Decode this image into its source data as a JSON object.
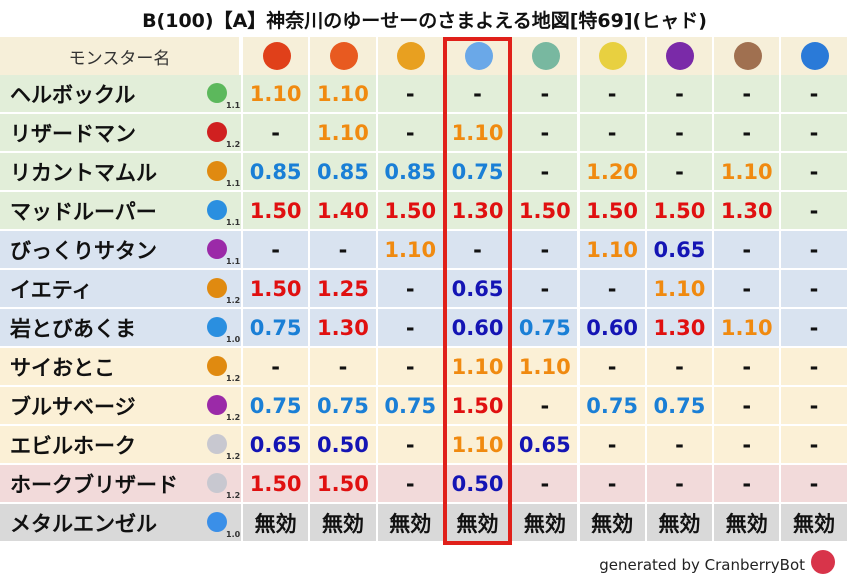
{
  "title": "B(100)【A】神奈川のゆーせーのさまよえる地図[特69](ヒャド)",
  "header": "モンスター名",
  "rows": [
    {
      "name": "ヘルボックル",
      "level": "1.1",
      "values": [
        "1.10",
        "1.10",
        "-",
        "-",
        "-",
        "-",
        "-",
        "-",
        "-"
      ]
    },
    {
      "name": "リザードマン",
      "level": "1.2",
      "values": [
        "-",
        "1.10",
        "-",
        "1.10",
        "-",
        "-",
        "-",
        "-",
        "-"
      ]
    },
    {
      "name": "リカントマムル",
      "level": "1.1",
      "values": [
        "0.85",
        "0.85",
        "0.85",
        "0.75",
        "-",
        "1.20",
        "-",
        "1.10",
        "-"
      ]
    },
    {
      "name": "マッドルーパー",
      "level": "1.1",
      "values": [
        "1.50",
        "1.40",
        "1.50",
        "1.30",
        "1.50",
        "1.50",
        "1.50",
        "1.30",
        "-"
      ]
    },
    {
      "name": "びっくりサタン",
      "level": "1.1",
      "values": [
        "-",
        "-",
        "1.10",
        "-",
        "-",
        "1.10",
        "0.65",
        "-",
        "-"
      ]
    },
    {
      "name": "イエティ",
      "level": "1.2",
      "values": [
        "1.50",
        "1.25",
        "-",
        "0.65",
        "-",
        "-",
        "1.10",
        "-",
        "-"
      ]
    },
    {
      "name": "岩とびあくま",
      "level": "1.0",
      "values": [
        "0.75",
        "1.30",
        "-",
        "0.60",
        "0.75",
        "0.60",
        "1.30",
        "1.10",
        "-"
      ]
    },
    {
      "name": "サイおとこ",
      "level": "1.2",
      "values": [
        "-",
        "-",
        "-",
        "1.10",
        "1.10",
        "-",
        "-",
        "-",
        "-"
      ]
    },
    {
      "name": "ブルサベージ",
      "level": "1.2",
      "values": [
        "0.75",
        "0.75",
        "0.75",
        "1.50",
        "-",
        "0.75",
        "0.75",
        "-",
        "-"
      ]
    },
    {
      "name": "エビルホーク",
      "level": "1.2",
      "values": [
        "0.65",
        "0.50",
        "-",
        "1.10",
        "0.65",
        "-",
        "-",
        "-",
        "-"
      ]
    },
    {
      "name": "ホークブリザード",
      "level": "1.2",
      "values": [
        "1.50",
        "1.50",
        "-",
        "0.50",
        "-",
        "-",
        "-",
        "-",
        "-"
      ]
    },
    {
      "name": "メタルエンゼル",
      "level": "1.0",
      "values": [
        "無効",
        "無効",
        "無効",
        "無効",
        "無効",
        "無効",
        "無効",
        "無効",
        "無効"
      ]
    }
  ],
  "footer": "generated by CranberryBot"
}
